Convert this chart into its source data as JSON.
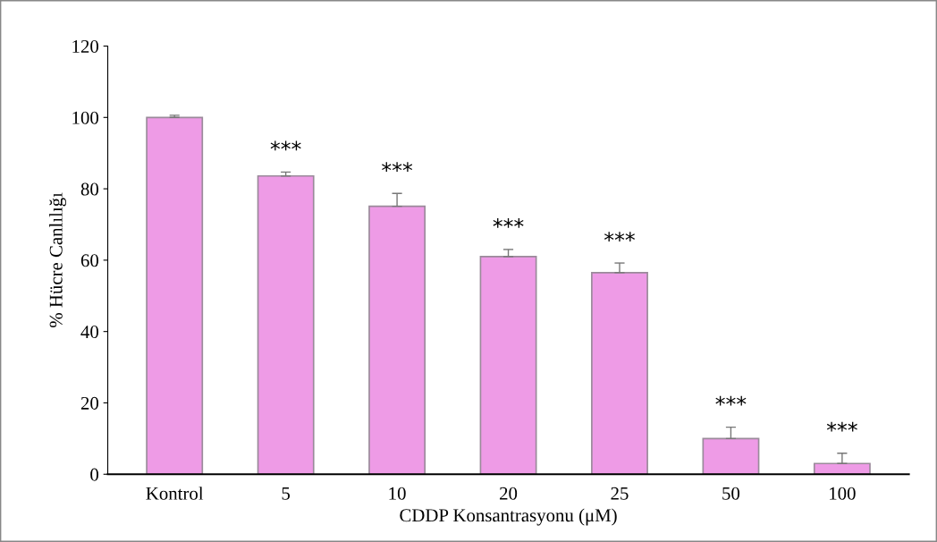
{
  "chart_data": {
    "type": "bar",
    "xlabel": "CDDP Konsantrasyonu (μM)",
    "ylabel": "% Hücre Canlılığı",
    "categories": [
      "Kontrol",
      "5",
      "10",
      "20",
      "25",
      "50",
      "100"
    ],
    "values": [
      100,
      83.6,
      75.1,
      61,
      56.5,
      10,
      3
    ],
    "errors": [
      [
        100,
        100.6
      ],
      [
        83.6,
        84.7
      ],
      [
        75.1,
        78.7
      ],
      [
        61,
        63
      ],
      [
        56.5,
        59.2
      ],
      [
        10,
        13.2
      ],
      [
        3,
        5.9
      ]
    ],
    "color": "#ee9be6",
    "ylim": [
      0,
      120
    ],
    "yticks": [
      0,
      20,
      40,
      60,
      80,
      100,
      120
    ],
    "grid": false,
    "annotations": [
      "***",
      "***",
      "***",
      "***",
      "***",
      "***"
    ]
  }
}
